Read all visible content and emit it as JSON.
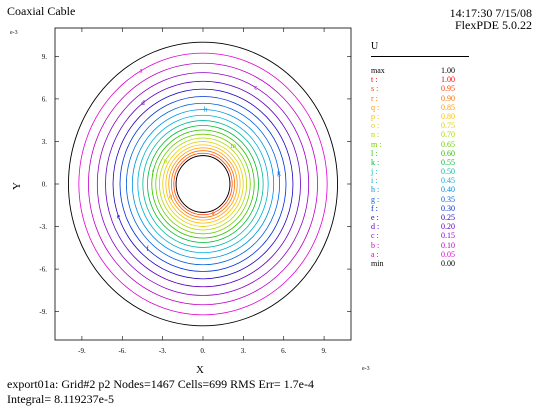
{
  "header": {
    "title": "Coaxial Cable",
    "timestamp": "14:17:30 7/15/08",
    "version": "FlexPDE 5.0.22"
  },
  "footer": {
    "line1": "export01a:  Grid#2  p2  Nodes=1467 Cells=699 RMS Err= 1.7e-4",
    "line2": "Integral=  8.119237e-5"
  },
  "chart_data": {
    "type": "contour",
    "title": "Coaxial Cable",
    "xlabel": "X",
    "ylabel": "Y",
    "x_exponent_label": "e-3",
    "y_exponent_label": "e-3",
    "xlim": [
      -11,
      11
    ],
    "ylim": [
      -11,
      11
    ],
    "x_ticks": [
      -9,
      -6,
      -3,
      0,
      3,
      6,
      9
    ],
    "x_tick_labels": [
      "-9.",
      "-6.",
      "-3.",
      "0.",
      "3.",
      "6.",
      "9."
    ],
    "y_ticks": [
      9,
      6,
      3,
      0,
      -3,
      -6,
      -9
    ],
    "y_tick_labels": [
      "9.",
      "6.",
      "3.",
      "0.",
      "-3.",
      "-6.",
      "-9."
    ],
    "outer_radius": 10,
    "inner_radius": 2,
    "legend_title": "U",
    "legend": [
      {
        "label": "max",
        "value": "1.00",
        "color": "#000000"
      },
      {
        "label": "t :",
        "value": "1.00",
        "color": "#ff0000"
      },
      {
        "label": "s :",
        "value": "0.95",
        "color": "#ff4000"
      },
      {
        "label": "r :",
        "value": "0.90",
        "color": "#ff7000"
      },
      {
        "label": "q :",
        "value": "0.85",
        "color": "#ff9a00"
      },
      {
        "label": "p :",
        "value": "0.80",
        "color": "#ffc000"
      },
      {
        "label": "o :",
        "value": "0.75",
        "color": "#e0d000"
      },
      {
        "label": "n :",
        "value": "0.70",
        "color": "#b0d800"
      },
      {
        "label": "m :",
        "value": "0.65",
        "color": "#70cc00"
      },
      {
        "label": "l :",
        "value": "0.60",
        "color": "#30c000"
      },
      {
        "label": "k :",
        "value": "0.55",
        "color": "#00b830"
      },
      {
        "label": "j :",
        "value": "0.50",
        "color": "#00b8a0"
      },
      {
        "label": "i :",
        "value": "0.45",
        "color": "#00b0d8"
      },
      {
        "label": "h :",
        "value": "0.40",
        "color": "#0090e0"
      },
      {
        "label": "g :",
        "value": "0.35",
        "color": "#0060e0"
      },
      {
        "label": "f :",
        "value": "0.30",
        "color": "#0030d8"
      },
      {
        "label": "e :",
        "value": "0.25",
        "color": "#2000c0"
      },
      {
        "label": "d :",
        "value": "0.20",
        "color": "#6000c0"
      },
      {
        "label": "c :",
        "value": "0.15",
        "color": "#9000c8"
      },
      {
        "label": "b :",
        "value": "0.10",
        "color": "#c000c8"
      },
      {
        "label": "a :",
        "value": "0.05",
        "color": "#e000d0"
      },
      {
        "label": "min",
        "value": "0.00",
        "color": "#000000"
      }
    ],
    "contour_levels": [
      0.05,
      0.1,
      0.15,
      0.2,
      0.25,
      0.3,
      0.35,
      0.4,
      0.45,
      0.5,
      0.55,
      0.6,
      0.65,
      0.7,
      0.75,
      0.8,
      0.85,
      0.9,
      0.95,
      1.0
    ],
    "contour_labels": [
      {
        "letter": "a",
        "level": 0.05,
        "angle_deg": 120
      },
      {
        "letter": "c",
        "level": 0.15,
        "angle_deg": 60
      },
      {
        "letter": "d",
        "level": 0.2,
        "angle_deg": 128
      },
      {
        "letter": "e",
        "level": 0.25,
        "angle_deg": 200
      },
      {
        "letter": "f",
        "level": 0.3,
        "angle_deg": 228
      },
      {
        "letter": "g",
        "level": 0.35,
        "angle_deg": 8
      },
      {
        "letter": "h",
        "level": 0.4,
        "angle_deg": 88
      },
      {
        "letter": "l",
        "level": 0.6,
        "angle_deg": 168
      },
      {
        "letter": "n",
        "level": 0.7,
        "angle_deg": 150
      },
      {
        "letter": "m",
        "level": 0.65,
        "angle_deg": 50
      },
      {
        "letter": "q",
        "level": 0.85,
        "angle_deg": 200
      },
      {
        "letter": "s",
        "level": 0.95,
        "angle_deg": 290
      }
    ]
  }
}
